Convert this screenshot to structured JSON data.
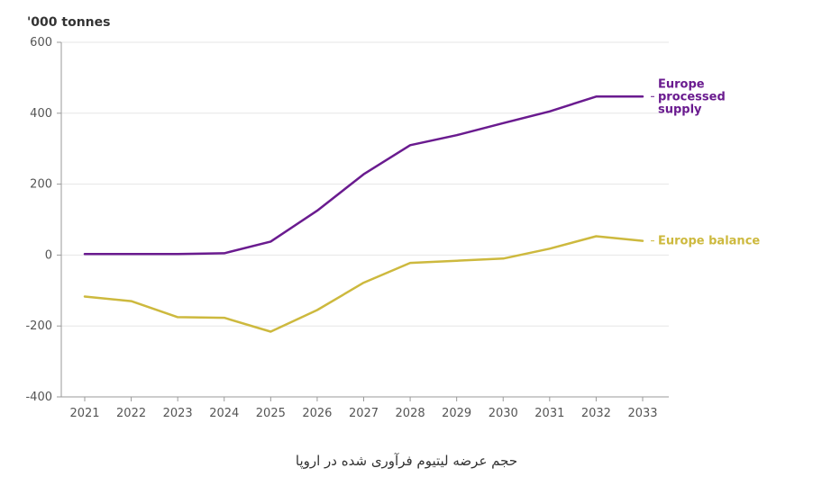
{
  "chart_data": {
    "type": "line",
    "unit_label": "'000 tonnes",
    "x": [
      "2021",
      "2022",
      "2023",
      "2024",
      "2025",
      "2026",
      "2027",
      "2028",
      "2029",
      "2030",
      "2031",
      "2032",
      "2033"
    ],
    "ylim": [
      -400,
      600
    ],
    "yticks": [
      "600",
      "400",
      "200",
      "0",
      "-200",
      "-400"
    ],
    "ytick_values": [
      600,
      400,
      200,
      0,
      -200,
      -400
    ],
    "grid": true,
    "series": [
      {
        "name": "Europe processed supply",
        "label_lines": [
          "Europe",
          "processed",
          "supply"
        ],
        "color": "#6a1b8f",
        "values": [
          3,
          3,
          3,
          5,
          38,
          125,
          228,
          310,
          338,
          372,
          405,
          447,
          447
        ]
      },
      {
        "name": "Europe balance",
        "label_lines": [
          "Europe balance"
        ],
        "color": "#cdb93e",
        "values": [
          -117,
          -130,
          -175,
          -177,
          -216,
          -155,
          -78,
          -22,
          -16,
          -10,
          18,
          53,
          40
        ]
      }
    ]
  },
  "caption": "حجم عرضه لیتیوم فرآوری شده در اروپا"
}
